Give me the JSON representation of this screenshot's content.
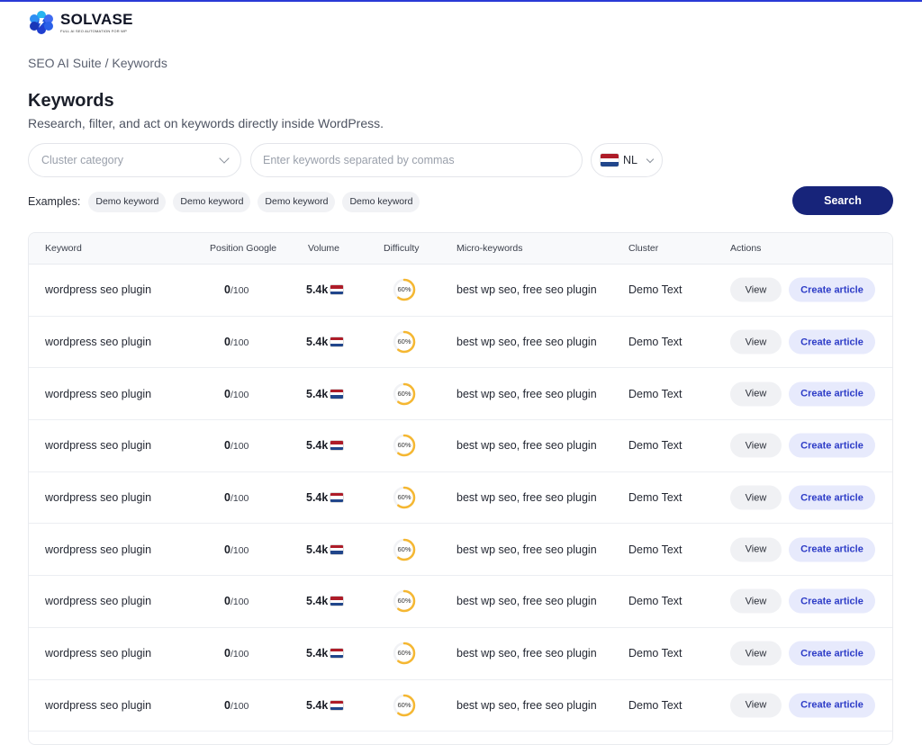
{
  "brand": {
    "name": "SOLVASE",
    "tagline": "FULL AI SEO AUTOMATION FOR WP",
    "accent": "#2a3ad6"
  },
  "breadcrumb": "SEO AI Suite / Keywords",
  "header": {
    "title": "Keywords",
    "subtitle": "Research, filter, and act on keywords directly inside WordPress."
  },
  "filters": {
    "cluster_placeholder": "Cluster category",
    "keywords_placeholder": "Enter keywords separated by commas",
    "country_code": "NL",
    "country_flag_colors": [
      "#ae1c28",
      "#ffffff",
      "#21468b"
    ]
  },
  "examples": {
    "label": "Examples:",
    "chips": [
      "Demo keyword",
      "Demo keyword",
      "Demo keyword",
      "Demo keyword"
    ]
  },
  "search_label": "Search",
  "table": {
    "columns": [
      "Keyword",
      "Position Google",
      "Volume",
      "Difficulty",
      "Micro-keywords",
      "Cluster",
      "Actions"
    ],
    "difficulty_color": "#f5b731",
    "rows": [
      {
        "keyword": "wordpress seo plugin",
        "position": "0",
        "position_max": "/100",
        "volume": "5.4k",
        "difficulty": 60,
        "difficulty_label": "60%",
        "micro": "best wp seo, free seo plugin",
        "cluster": "Demo Text",
        "view_label": "View",
        "create_label": "Create article"
      },
      {
        "keyword": "wordpress seo plugin",
        "position": "0",
        "position_max": "/100",
        "volume": "5.4k",
        "difficulty": 60,
        "difficulty_label": "60%",
        "micro": "best wp seo, free seo plugin",
        "cluster": "Demo Text",
        "view_label": "View",
        "create_label": "Create article"
      },
      {
        "keyword": "wordpress seo plugin",
        "position": "0",
        "position_max": "/100",
        "volume": "5.4k",
        "difficulty": 60,
        "difficulty_label": "60%",
        "micro": "best wp seo, free seo plugin",
        "cluster": "Demo Text",
        "view_label": "View",
        "create_label": "Create article"
      },
      {
        "keyword": "wordpress seo plugin",
        "position": "0",
        "position_max": "/100",
        "volume": "5.4k",
        "difficulty": 60,
        "difficulty_label": "60%",
        "micro": "best wp seo, free seo plugin",
        "cluster": "Demo Text",
        "view_label": "View",
        "create_label": "Create article"
      },
      {
        "keyword": "wordpress seo plugin",
        "position": "0",
        "position_max": "/100",
        "volume": "5.4k",
        "difficulty": 60,
        "difficulty_label": "60%",
        "micro": "best wp seo, free seo plugin",
        "cluster": "Demo Text",
        "view_label": "View",
        "create_label": "Create article"
      },
      {
        "keyword": "wordpress seo plugin",
        "position": "0",
        "position_max": "/100",
        "volume": "5.4k",
        "difficulty": 60,
        "difficulty_label": "60%",
        "micro": "best wp seo, free seo plugin",
        "cluster": "Demo Text",
        "view_label": "View",
        "create_label": "Create article"
      },
      {
        "keyword": "wordpress seo plugin",
        "position": "0",
        "position_max": "/100",
        "volume": "5.4k",
        "difficulty": 60,
        "difficulty_label": "60%",
        "micro": "best wp seo, free seo plugin",
        "cluster": "Demo Text",
        "view_label": "View",
        "create_label": "Create article"
      },
      {
        "keyword": "wordpress seo plugin",
        "position": "0",
        "position_max": "/100",
        "volume": "5.4k",
        "difficulty": 60,
        "difficulty_label": "60%",
        "micro": "best wp seo, free seo plugin",
        "cluster": "Demo Text",
        "view_label": "View",
        "create_label": "Create article"
      },
      {
        "keyword": "wordpress seo plugin",
        "position": "0",
        "position_max": "/100",
        "volume": "5.4k",
        "difficulty": 60,
        "difficulty_label": "60%",
        "micro": "best wp seo, free seo plugin",
        "cluster": "Demo Text",
        "view_label": "View",
        "create_label": "Create article"
      }
    ]
  }
}
